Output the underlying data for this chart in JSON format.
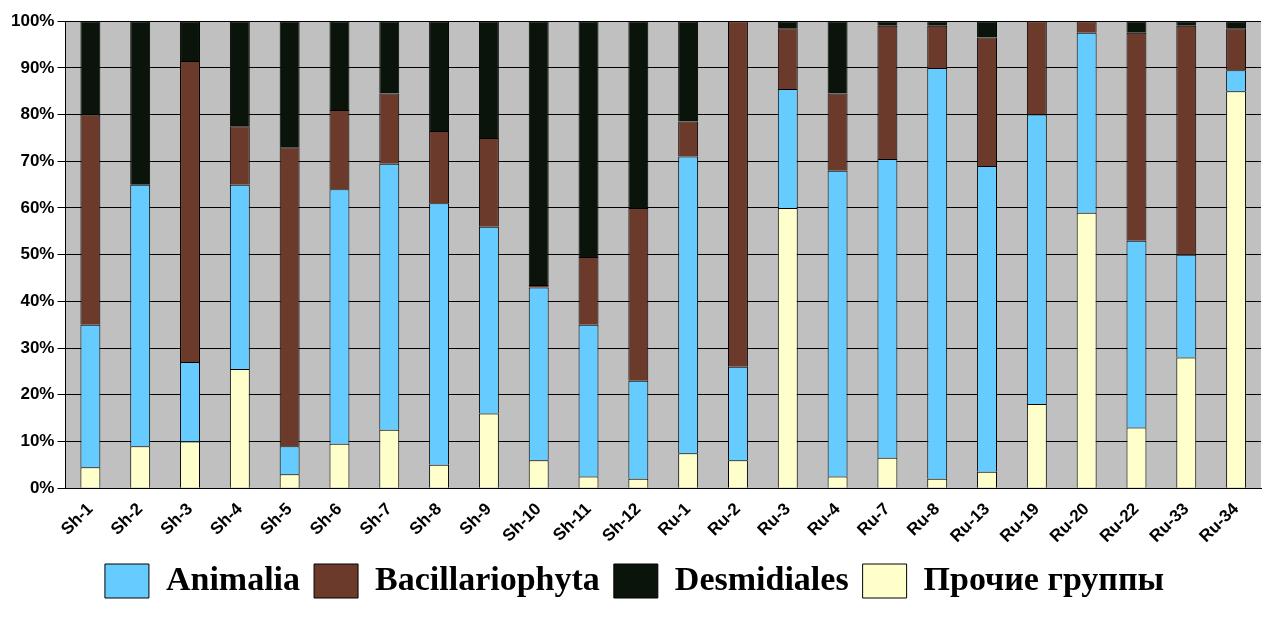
{
  "chart_data": {
    "type": "bar",
    "stacked": true,
    "categories": [
      "Sh-1",
      "Sh-2",
      "Sh-3",
      "Sh-4",
      "Sh-5",
      "Sh-6",
      "Sh-7",
      "Sh-8",
      "Sh-9",
      "Sh-10",
      "Sh-11",
      "Sh-12",
      "Ru-1",
      "Ru-2",
      "Ru-3",
      "Ru-4",
      "Ru-7",
      "Ru-8",
      "Ru-13",
      "Ru-19",
      "Ru-20",
      "Ru-22",
      "Ru-33",
      "Ru-34"
    ],
    "series": [
      {
        "name": "Прочие группы",
        "color": "#ffffcc",
        "values": [
          4.5,
          9,
          10,
          25.5,
          3,
          9.5,
          12.5,
          5,
          16,
          6,
          2.5,
          2,
          7.5,
          6,
          60,
          2.5,
          6.5,
          2,
          3.5,
          18,
          59,
          13,
          28,
          85
        ]
      },
      {
        "name": "Animalia",
        "color": "#66ccff",
        "values": [
          30.5,
          56,
          17,
          39.5,
          6,
          54.5,
          57,
          56,
          40,
          37,
          32.5,
          21,
          63.5,
          20,
          25.5,
          65.5,
          64,
          88,
          65.5,
          62,
          38.5,
          40,
          22,
          4.5
        ]
      },
      {
        "name": "Bacillariophyta",
        "color": "#6b3a2a",
        "values": [
          45,
          0,
          64.5,
          12.5,
          64,
          17,
          15,
          15.5,
          19,
          0.5,
          14.5,
          37,
          7.5,
          74,
          13,
          16.5,
          28.5,
          9,
          27.5,
          20,
          2.5,
          44.5,
          49,
          9
        ]
      },
      {
        "name": "Desmidiales",
        "color": "#0a140a",
        "values": [
          20,
          35,
          8.5,
          22.5,
          27,
          19,
          15.5,
          23.5,
          25,
          56.5,
          50.5,
          40,
          21.5,
          0,
          1.5,
          15.5,
          1,
          1,
          3.5,
          0,
          0,
          2.5,
          1,
          1.5
        ]
      }
    ],
    "ylim": [
      0,
      100
    ],
    "yticks": [
      {
        "value": 0,
        "label": "0%"
      },
      {
        "value": 10,
        "label": "10%"
      },
      {
        "value": 20,
        "label": "20%"
      },
      {
        "value": 30,
        "label": "30%"
      },
      {
        "value": 40,
        "label": "40%"
      },
      {
        "value": 50,
        "label": "50%"
      },
      {
        "value": 60,
        "label": "60%"
      },
      {
        "value": 70,
        "label": "70%"
      },
      {
        "value": 80,
        "label": "80%"
      },
      {
        "value": 90,
        "label": "90%"
      },
      {
        "value": 100,
        "label": "100%"
      }
    ],
    "grid": "y",
    "legend": "bottom"
  }
}
